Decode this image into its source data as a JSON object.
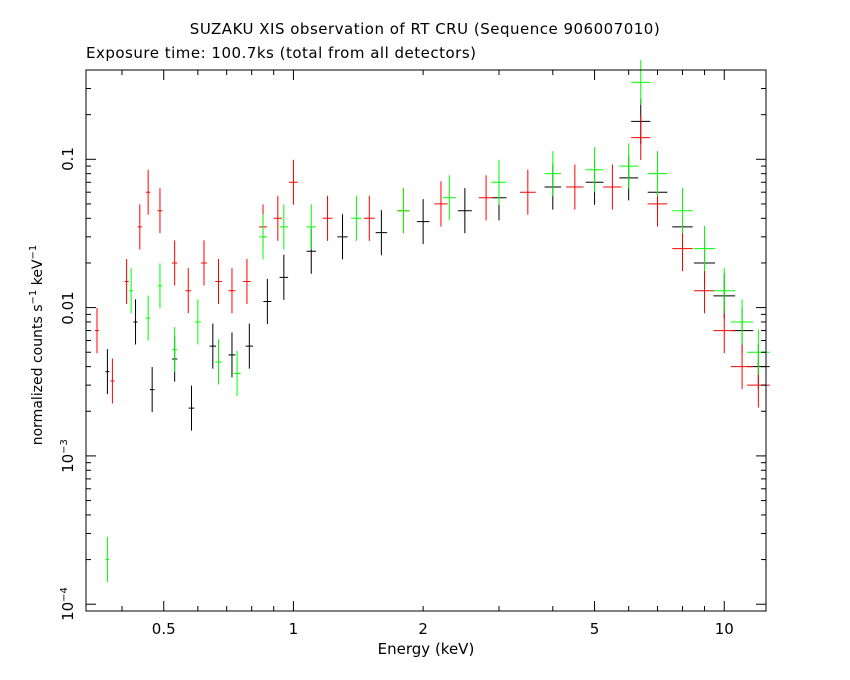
{
  "chart_data": {
    "type": "scatter",
    "title": "SUZAKU XIS observation of RT CRU (Sequence 906007010)",
    "subtitle": "Exposure time: 100.7ks (total from all detectors)",
    "xlabel": "Energy (keV)",
    "ylabel_text": "normalized counts s",
    "ylabel_exp1": "−1",
    "ylabel_mid": " keV",
    "ylabel_exp2": "−1",
    "xscale": "log",
    "yscale": "log",
    "xlim": [
      0.33,
      12.5
    ],
    "ylim": [
      9e-05,
      0.4
    ],
    "xticks": [
      {
        "value": 0.5,
        "label": "0.5"
      },
      {
        "value": 1,
        "label": "1"
      },
      {
        "value": 2,
        "label": "2"
      },
      {
        "value": 5,
        "label": "5"
      },
      {
        "value": 10,
        "label": "10"
      }
    ],
    "yticks": [
      {
        "value": 0.1,
        "base": "0.1",
        "exp": ""
      },
      {
        "value": 0.01,
        "base": "0.01",
        "exp": ""
      },
      {
        "value": 0.001,
        "base": "10",
        "exp": "−3"
      },
      {
        "value": 0.0001,
        "base": "10",
        "exp": "−4"
      }
    ],
    "grid": false,
    "series": [
      {
        "color": "#000000",
        "points": [
          {
            "x": 0.37,
            "y": 0.0037
          },
          {
            "x": 0.43,
            "y": 0.008
          },
          {
            "x": 0.47,
            "y": 0.0028
          },
          {
            "x": 0.53,
            "y": 0.0045
          },
          {
            "x": 0.58,
            "y": 0.0021
          },
          {
            "x": 0.65,
            "y": 0.0055
          },
          {
            "x": 0.72,
            "y": 0.0048
          },
          {
            "x": 0.79,
            "y": 0.0055
          },
          {
            "x": 0.87,
            "y": 0.011
          },
          {
            "x": 0.95,
            "y": 0.016
          },
          {
            "x": 1.1,
            "y": 0.024
          },
          {
            "x": 1.3,
            "y": 0.03
          },
          {
            "x": 1.6,
            "y": 0.032
          },
          {
            "x": 2.0,
            "y": 0.038
          },
          {
            "x": 2.5,
            "y": 0.045
          },
          {
            "x": 3.0,
            "y": 0.055
          },
          {
            "x": 4.0,
            "y": 0.065
          },
          {
            "x": 5.0,
            "y": 0.07
          },
          {
            "x": 6.0,
            "y": 0.075
          },
          {
            "x": 6.4,
            "y": 0.18
          },
          {
            "x": 7.0,
            "y": 0.06
          },
          {
            "x": 8.0,
            "y": 0.035
          },
          {
            "x": 9.0,
            "y": 0.02
          },
          {
            "x": 10.0,
            "y": 0.012
          },
          {
            "x": 11.0,
            "y": 0.007
          },
          {
            "x": 12.0,
            "y": 0.004
          }
        ]
      },
      {
        "color": "#ff0000",
        "points": [
          {
            "x": 0.35,
            "y": 0.007
          },
          {
            "x": 0.38,
            "y": 0.0032
          },
          {
            "x": 0.41,
            "y": 0.015
          },
          {
            "x": 0.44,
            "y": 0.035
          },
          {
            "x": 0.46,
            "y": 0.06
          },
          {
            "x": 0.49,
            "y": 0.045
          },
          {
            "x": 0.53,
            "y": 0.02
          },
          {
            "x": 0.57,
            "y": 0.013
          },
          {
            "x": 0.62,
            "y": 0.02
          },
          {
            "x": 0.67,
            "y": 0.015
          },
          {
            "x": 0.72,
            "y": 0.013
          },
          {
            "x": 0.78,
            "y": 0.015
          },
          {
            "x": 0.85,
            "y": 0.035
          },
          {
            "x": 0.92,
            "y": 0.04
          },
          {
            "x": 1.0,
            "y": 0.07
          },
          {
            "x": 1.2,
            "y": 0.04
          },
          {
            "x": 1.5,
            "y": 0.04
          },
          {
            "x": 1.8,
            "y": 0.045
          },
          {
            "x": 2.2,
            "y": 0.05
          },
          {
            "x": 2.8,
            "y": 0.055
          },
          {
            "x": 3.5,
            "y": 0.06
          },
          {
            "x": 4.5,
            "y": 0.065
          },
          {
            "x": 5.5,
            "y": 0.065
          },
          {
            "x": 6.4,
            "y": 0.14
          },
          {
            "x": 7.0,
            "y": 0.05
          },
          {
            "x": 8.0,
            "y": 0.025
          },
          {
            "x": 9.0,
            "y": 0.013
          },
          {
            "x": 10.0,
            "y": 0.007
          },
          {
            "x": 11.0,
            "y": 0.004
          },
          {
            "x": 12.0,
            "y": 0.003
          }
        ]
      },
      {
        "color": "#00ff00",
        "points": [
          {
            "x": 0.37,
            "y": 0.0002
          },
          {
            "x": 0.42,
            "y": 0.013
          },
          {
            "x": 0.46,
            "y": 0.0085
          },
          {
            "x": 0.49,
            "y": 0.014
          },
          {
            "x": 0.53,
            "y": 0.0052
          },
          {
            "x": 0.6,
            "y": 0.008
          },
          {
            "x": 0.67,
            "y": 0.0043
          },
          {
            "x": 0.74,
            "y": 0.0036
          },
          {
            "x": 0.85,
            "y": 0.03
          },
          {
            "x": 0.95,
            "y": 0.035
          },
          {
            "x": 1.1,
            "y": 0.035
          },
          {
            "x": 1.4,
            "y": 0.04
          },
          {
            "x": 1.8,
            "y": 0.045
          },
          {
            "x": 2.3,
            "y": 0.055
          },
          {
            "x": 3.0,
            "y": 0.07
          },
          {
            "x": 4.0,
            "y": 0.08
          },
          {
            "x": 5.0,
            "y": 0.085
          },
          {
            "x": 6.0,
            "y": 0.09
          },
          {
            "x": 6.4,
            "y": 0.33
          },
          {
            "x": 7.0,
            "y": 0.08
          },
          {
            "x": 8.0,
            "y": 0.045
          },
          {
            "x": 9.0,
            "y": 0.025
          },
          {
            "x": 10.0,
            "y": 0.013
          },
          {
            "x": 11.0,
            "y": 0.008
          },
          {
            "x": 12.0,
            "y": 0.005
          }
        ]
      }
    ]
  }
}
